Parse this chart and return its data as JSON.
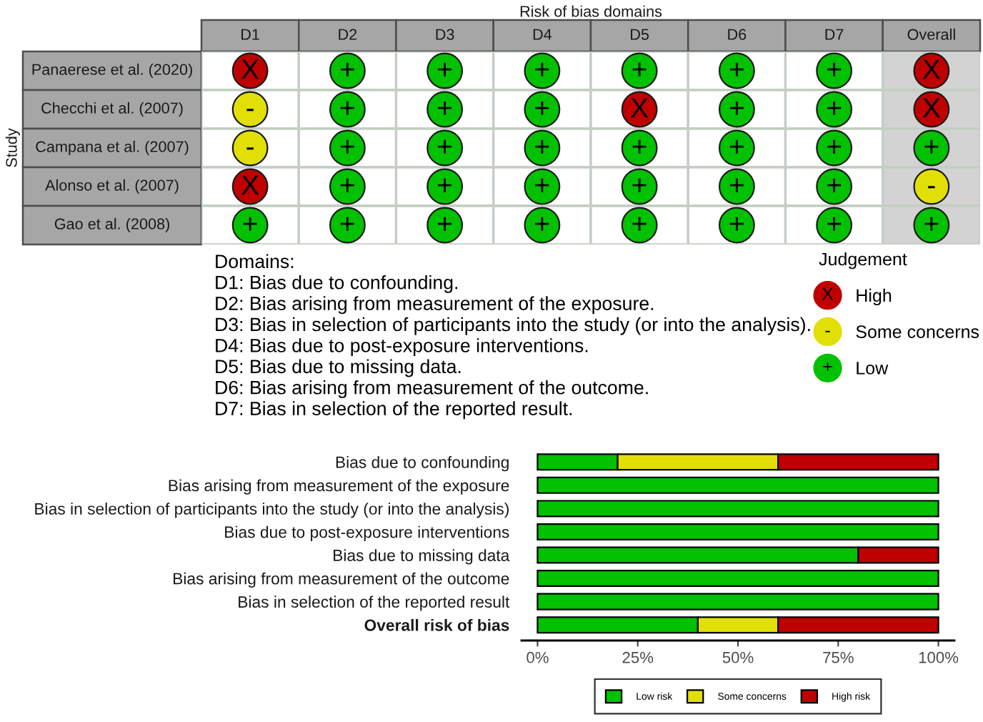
{
  "chart_data": [
    {
      "type": "heatmap",
      "title": "Risk of bias domains",
      "ylabel": "Study",
      "categories": [
        "D1",
        "D2",
        "D3",
        "D4",
        "D5",
        "D6",
        "D7",
        "Overall"
      ],
      "y_categories": [
        "Panaerese et al. (2020)",
        "Checchi et al. (2007)",
        "Campana et al. (2007)",
        "Alonso et al. (2007)",
        "Gao et al. (2008)"
      ],
      "cells": [
        [
          "X",
          "+",
          "+",
          "+",
          "+",
          "+",
          "+",
          "X"
        ],
        [
          "-",
          "+",
          "+",
          "+",
          "X",
          "+",
          "+",
          "X"
        ],
        [
          "-",
          "+",
          "+",
          "+",
          "+",
          "+",
          "+",
          "+"
        ],
        [
          "X",
          "+",
          "+",
          "+",
          "+",
          "+",
          "+",
          "-"
        ],
        [
          "+",
          "+",
          "+",
          "+",
          "+",
          "+",
          "+",
          "+"
        ]
      ],
      "clabel": "Judgement",
      "cticks": [
        {
          "value": "X",
          "label": "High"
        },
        {
          "value": "-",
          "label": "Some concerns"
        },
        {
          "value": "+",
          "label": "Low"
        }
      ],
      "colors": [
        "#BF0000",
        "#E2DF07",
        "#02C100"
      ],
      "annotations": [
        "Domains:",
        "D1: Bias due to confounding.",
        "D2: Bias arising from measurement of the exposure.",
        "D3: Bias in selection of participants into the study (or into the analysis).",
        "D4: Bias due to post-exposure interventions.",
        "D5: Bias due to missing data.",
        "D6: Bias arising from measurement of the outcome.",
        "D7: Bias in selection of the reported result."
      ]
    },
    {
      "type": "bar",
      "orientation": "horizontal",
      "stacked": true,
      "categories": [
        "Bias due to confounding",
        "Bias arising from measurement of the exposure",
        "Bias in selection of participants into the study (or into the analysis)",
        "Bias due to post-exposure interventions",
        "Bias due to missing data",
        "Bias arising from measurement of the outcome",
        "Bias in selection of the reported result",
        "Overall risk of bias"
      ],
      "series": [
        {
          "name": "Low risk",
          "color": "#02C100",
          "values": [
            20,
            100,
            100,
            100,
            80,
            100,
            100,
            40
          ]
        },
        {
          "name": "Some concerns",
          "color": "#E2DF07",
          "values": [
            40,
            0,
            0,
            0,
            0,
            0,
            0,
            20
          ]
        },
        {
          "name": "High risk",
          "color": "#BF0000",
          "values": [
            40,
            0,
            0,
            0,
            20,
            0,
            0,
            40
          ]
        }
      ],
      "xlim": [
        -4,
        104
      ],
      "xticks": [
        {
          "value": 0,
          "label": "0%"
        },
        {
          "value": 25,
          "label": "25%"
        },
        {
          "value": 50,
          "label": "50%"
        },
        {
          "value": 75,
          "label": "75%"
        },
        {
          "value": 100,
          "label": "100%"
        }
      ],
      "legend": "bottom"
    }
  ]
}
